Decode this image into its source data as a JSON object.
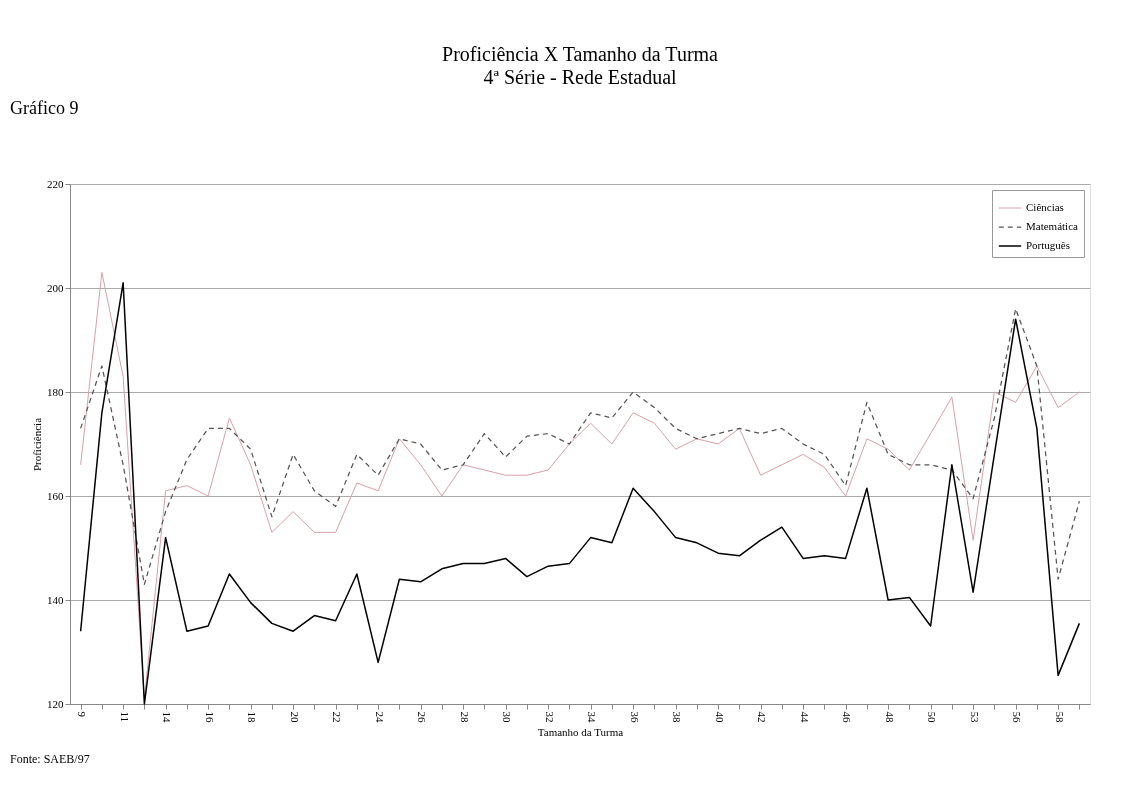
{
  "chart_data": {
    "type": "line",
    "title": "Proficiência X Tamanho da Turma",
    "subtitle": "4ª Série - Rede Estadual",
    "xlabel": "Tamanho da Turma",
    "ylabel": "Proficiência",
    "annotations": [
      "Gráfico 9",
      "Fonte: SAEB/97"
    ],
    "categories": [
      "9",
      null,
      "11",
      null,
      "14",
      null,
      "16",
      null,
      "18",
      null,
      "20",
      null,
      "22",
      null,
      "24",
      null,
      "26",
      null,
      "28",
      null,
      "30",
      null,
      "32",
      null,
      "34",
      null,
      "36",
      null,
      "38",
      null,
      "40",
      null,
      "42",
      null,
      "44",
      null,
      "46",
      null,
      "48",
      null,
      "50",
      null,
      "53",
      null,
      "56",
      null,
      "58",
      null
    ],
    "ylim": [
      120,
      220
    ],
    "yticks": [
      120,
      140,
      160,
      180,
      200,
      220
    ],
    "grid": "y",
    "legend": "top right",
    "marker": "none",
    "series": [
      {
        "name": "Ciências",
        "color": "#d8a0a8",
        "line_style": "solid",
        "values": [
          166,
          203,
          183,
          121,
          161,
          162,
          160,
          175,
          166,
          153,
          157,
          153,
          153,
          162.5,
          161,
          171,
          166,
          160,
          166,
          165,
          164,
          164,
          165,
          170,
          174,
          170,
          176,
          174,
          169,
          171,
          170,
          173,
          164,
          166,
          168,
          165.5,
          160,
          171,
          169,
          165,
          172,
          179,
          151.5,
          180,
          178,
          185,
          177,
          180
        ]
      },
      {
        "name": "Matemática",
        "color": "#555555",
        "line_style": "dashed",
        "values": [
          173,
          185,
          166,
          143,
          157,
          167,
          173,
          173,
          169,
          156,
          168,
          161,
          158,
          168,
          164,
          171,
          170,
          165,
          166,
          172,
          167.5,
          171.5,
          172,
          170,
          176,
          175,
          180,
          177,
          173,
          171,
          172,
          173,
          172,
          173,
          170,
          168,
          162,
          178,
          168,
          166,
          166,
          165,
          159.5,
          175,
          196,
          185,
          144,
          159
        ]
      },
      {
        "name": "Português",
        "color": "#000000",
        "line_style": "solid",
        "values": [
          134,
          176,
          201,
          120,
          152,
          134,
          135,
          145,
          139.5,
          135.5,
          134,
          137,
          136,
          145,
          128,
          144,
          143.5,
          146,
          147,
          147,
          148,
          144.5,
          146.5,
          147,
          152,
          151,
          161.5,
          157,
          152,
          151,
          149,
          148.5,
          151.5,
          154,
          148,
          148.5,
          148,
          161.5,
          140,
          140.5,
          135,
          166,
          141.5,
          168,
          194,
          173,
          125.5,
          135.5
        ]
      }
    ]
  }
}
